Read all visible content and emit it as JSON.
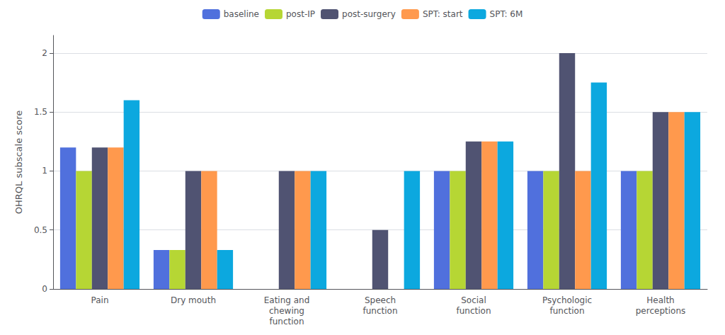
{
  "chart_data": {
    "type": "bar",
    "categories": [
      "Pain",
      "Dry mouth",
      "Eating and\nchewing\nfunction",
      "Speech\nfunction",
      "Social\nfunction",
      "Psychologic\nfunction",
      "Health\nperceptions"
    ],
    "series": [
      {
        "name": "baseline",
        "values": [
          1.2,
          0.33,
          0.0,
          0.0,
          1.0,
          1.0,
          1.0
        ]
      },
      {
        "name": "post-IP",
        "values": [
          1.0,
          0.33,
          0.0,
          0.0,
          1.0,
          1.0,
          1.0
        ]
      },
      {
        "name": "post-surgery",
        "values": [
          1.2,
          1.0,
          1.0,
          0.5,
          1.25,
          2.0,
          1.5
        ]
      },
      {
        "name": "SPT: start",
        "values": [
          1.2,
          1.0,
          1.0,
          0.0,
          1.25,
          1.0,
          1.5
        ]
      },
      {
        "name": "SPT: 6M",
        "values": [
          1.6,
          0.33,
          1.0,
          1.0,
          1.25,
          1.75,
          1.5
        ]
      }
    ],
    "ylabel": "OHRQL subscale score",
    "ylim": [
      0,
      2.15
    ],
    "yticks": [
      0,
      0.5,
      1,
      1.5,
      2
    ],
    "grid": true,
    "legend": "top"
  }
}
